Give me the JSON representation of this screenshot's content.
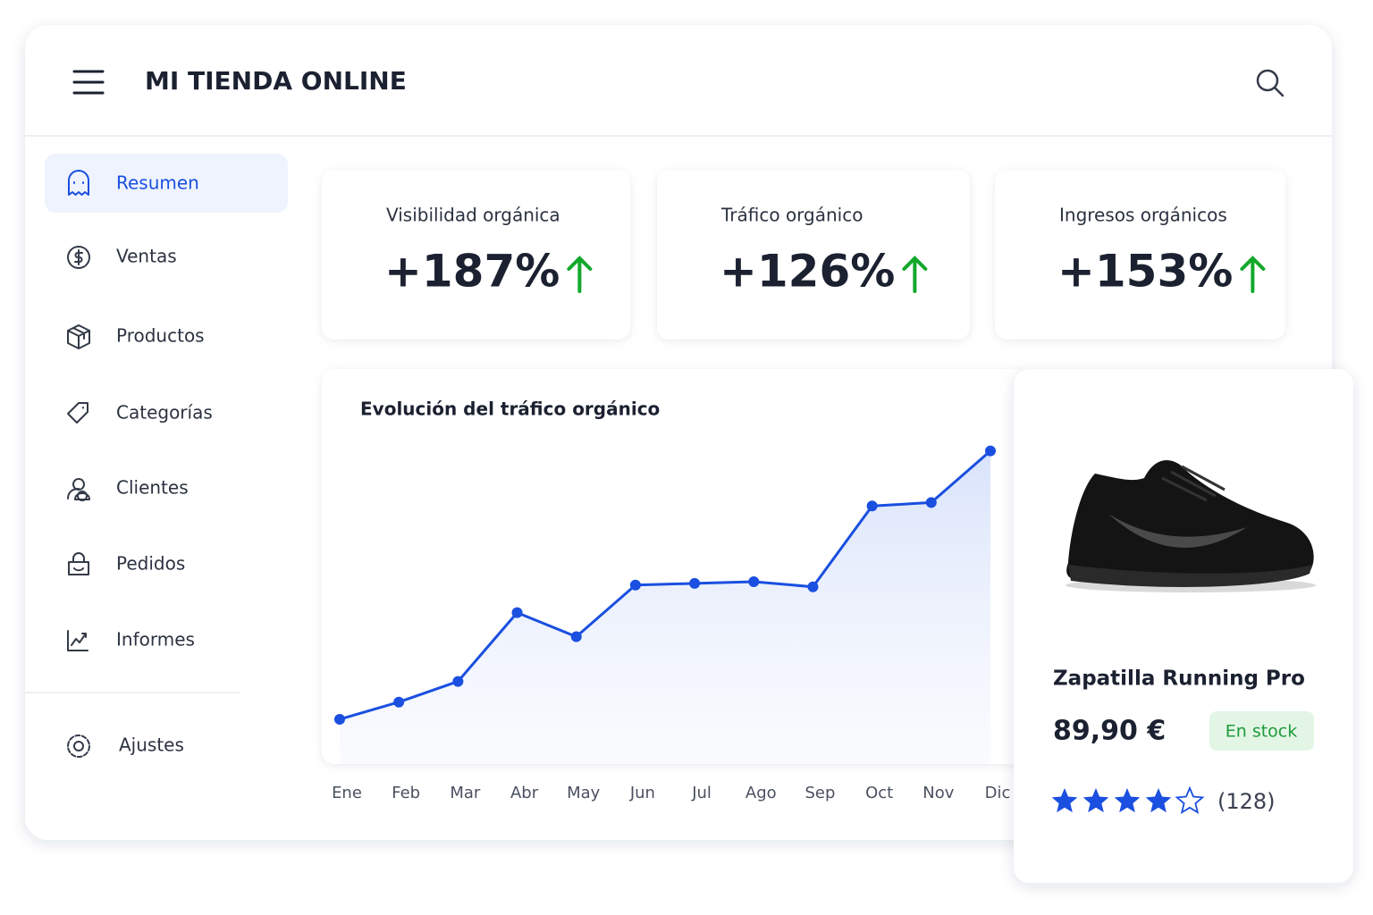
{
  "header": {
    "title": "MI TIENDA ONLINE"
  },
  "sidebar": {
    "items": [
      "Resumen",
      "Ventas",
      "Productos",
      "Categorías",
      "Clientes",
      "Pedidos",
      "Informes"
    ],
    "active": 0,
    "footer": "Ajustes"
  },
  "kpis": [
    {
      "label": "Visibilidad orgánica",
      "value": "+187%"
    },
    {
      "label": "Tráfico orgánico",
      "value": "+126%"
    },
    {
      "label": "Ingresos orgánicos",
      "value": "+153%"
    }
  ],
  "chart_data": {
    "type": "line",
    "title": "Evolución del tráfico orgánico",
    "categories": [
      "Ene",
      "Feb",
      "Mar",
      "Abr",
      "May",
      "Jun",
      "Jul",
      "Ago",
      "Sep",
      "Oct",
      "Nov",
      "Dic"
    ],
    "values": [
      13,
      18,
      24,
      44,
      37,
      52,
      52.5,
      53,
      51.5,
      75,
      76,
      91
    ],
    "color": "#1a4fe0",
    "ylim": [
      0,
      100
    ]
  },
  "product": {
    "name": "Zapatilla Running Pro",
    "price": "89,90 €",
    "stock": "En stock",
    "rating": 4,
    "rating_max": 5,
    "reviews": "(128)"
  }
}
